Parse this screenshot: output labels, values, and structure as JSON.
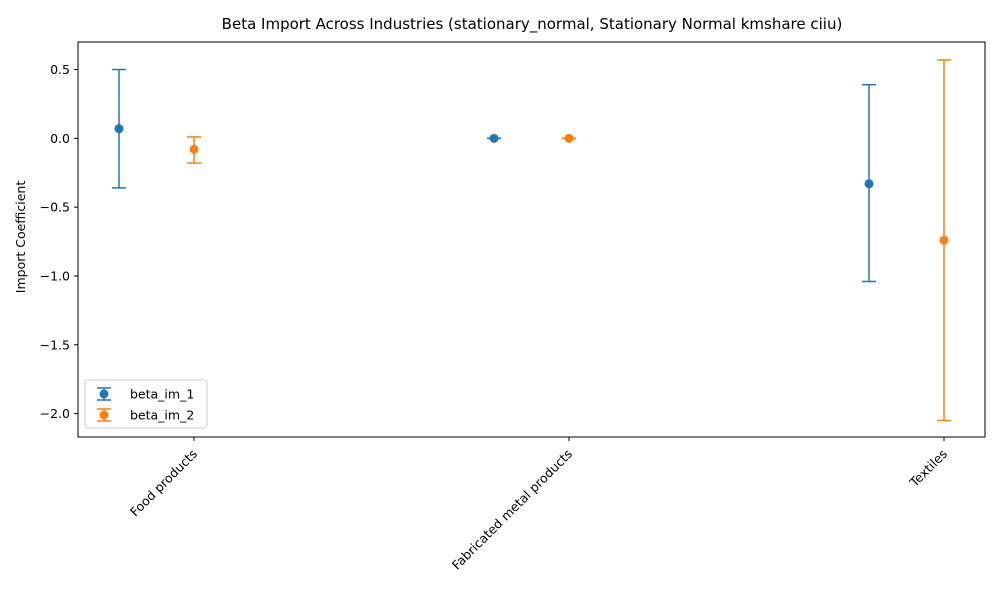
{
  "chart_data": {
    "type": "scatter",
    "subtype": "errorbar",
    "title": "Beta Import Across Industries (stationary_normal, Stationary Normal kmshare ciiu)",
    "xlabel": "",
    "ylabel": "Import Coefficient",
    "categories": [
      "Food products",
      "Fabricated metal products",
      "Textiles"
    ],
    "ylim": [
      -2.17,
      0.7
    ],
    "yticks": [
      0.5,
      0.0,
      -0.5,
      -1.0,
      -1.5,
      -2.0
    ],
    "ytick_labels": [
      "0.5",
      "0.0",
      "−0.5",
      "−1.0",
      "−1.5",
      "−2.0"
    ],
    "grid": false,
    "legend_position": "lower-left",
    "series": [
      {
        "name": "beta_im_1",
        "color": "#1f77b4",
        "values": [
          0.07,
          0.0,
          -0.33
        ],
        "lower": [
          -0.36,
          0.0,
          -1.04
        ],
        "upper": [
          0.5,
          0.0,
          0.39
        ]
      },
      {
        "name": "beta_im_2",
        "color": "#ff7f0e",
        "values": [
          -0.08,
          0.0,
          -0.74
        ],
        "lower": [
          -0.18,
          0.0,
          -2.05
        ],
        "upper": [
          0.01,
          0.0,
          0.57
        ]
      }
    ]
  }
}
